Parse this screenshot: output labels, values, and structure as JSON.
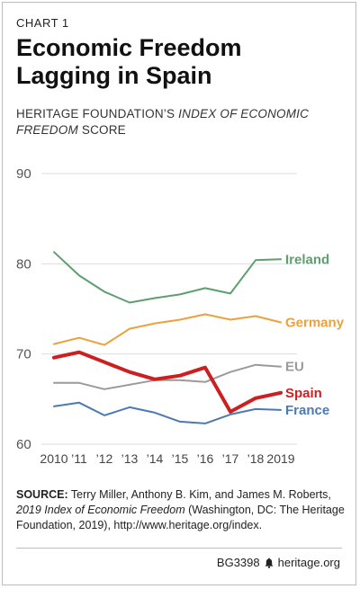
{
  "header": {
    "chart_label": "CHART 1",
    "title_line1": "Economic Freedom",
    "title_line2": "Lagging in Spain",
    "subtitle_part1": "HERITAGE FOUNDATION’S",
    "subtitle_italic": "INDEX OF ECONOMIC FREEDOM",
    "subtitle_part2": "SCORE"
  },
  "chart_data": {
    "type": "line",
    "x": [
      2010,
      2011,
      2012,
      2013,
      2014,
      2015,
      2016,
      2017,
      2018,
      2019
    ],
    "x_tick_labels": [
      "2010",
      "’11",
      "’12",
      "’13",
      "’14",
      "’15",
      "’16",
      "’17",
      "’18",
      "2019"
    ],
    "ylim": [
      60,
      90
    ],
    "y_ticks": [
      60,
      70,
      80,
      90
    ],
    "grid": true,
    "series": [
      {
        "name": "Ireland",
        "color": "#5f9e70",
        "width": 2,
        "values": [
          81.3,
          78.7,
          76.9,
          75.7,
          76.2,
          76.6,
          77.3,
          76.7,
          80.4,
          80.5
        ]
      },
      {
        "name": "Germany",
        "color": "#eaa23e",
        "width": 2,
        "values": [
          71.1,
          71.8,
          71.0,
          72.8,
          73.4,
          73.8,
          74.4,
          73.8,
          74.2,
          73.5
        ]
      },
      {
        "name": "EU",
        "color": "#9a9a9a",
        "width": 2,
        "values": [
          66.8,
          66.8,
          66.1,
          66.6,
          67.1,
          67.1,
          66.9,
          68.0,
          68.8,
          68.6
        ]
      },
      {
        "name": "Spain",
        "color": "#cc1f1f",
        "width": 4,
        "values": [
          69.6,
          70.2,
          69.1,
          68.0,
          67.2,
          67.6,
          68.5,
          63.6,
          65.1,
          65.7
        ]
      },
      {
        "name": "France",
        "color": "#4d79b2",
        "width": 2,
        "values": [
          64.2,
          64.6,
          63.2,
          64.1,
          63.5,
          62.5,
          62.3,
          63.3,
          63.9,
          63.8
        ]
      }
    ]
  },
  "source": {
    "label": "SOURCE:",
    "authors": "Terry Miller, Anthony B. Kim, and James M. Roberts,",
    "book": "2019 Index of Economic Freedom",
    "rest": "(Washington, DC: The Heritage Foundation, 2019), http://www.heritage.org/index."
  },
  "footer": {
    "code": "BG3398",
    "site": "heritage.org",
    "icon": "liberty-bell-icon"
  }
}
